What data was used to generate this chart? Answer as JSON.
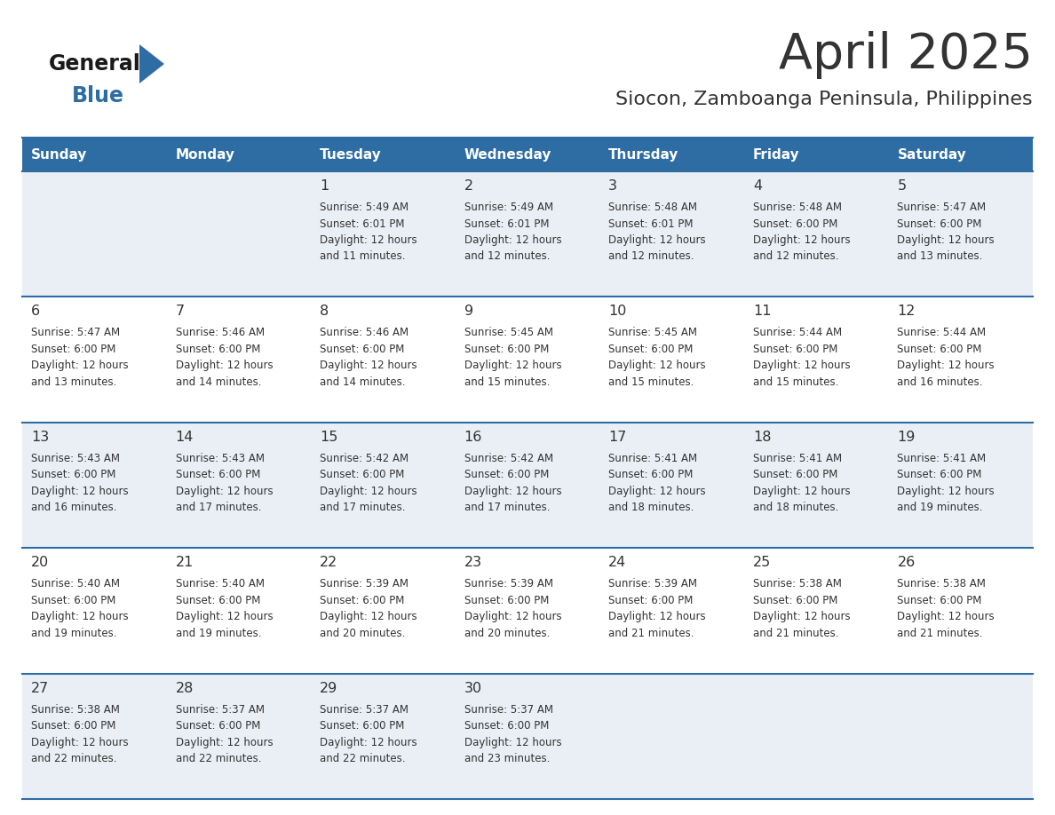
{
  "title": "April 2025",
  "subtitle": "Siocon, Zamboanga Peninsula, Philippines",
  "header_bg_color": "#2E6DA4",
  "header_text_color": "#FFFFFF",
  "row_bg_color_odd": "#EAEFF5",
  "row_bg_color_even": "#FFFFFF",
  "cell_border_color": "#2E6DA4",
  "text_color": "#333333",
  "day_headers": [
    "Sunday",
    "Monday",
    "Tuesday",
    "Wednesday",
    "Thursday",
    "Friday",
    "Saturday"
  ],
  "logo_general_color": "#1a1a1a",
  "logo_blue_color": "#2E6DA4",
  "calendar_data": [
    [
      {
        "day": "",
        "sunrise": "",
        "sunset": "",
        "daylight_hours": 0,
        "daylight_minutes": 0
      },
      {
        "day": "",
        "sunrise": "",
        "sunset": "",
        "daylight_hours": 0,
        "daylight_minutes": 0
      },
      {
        "day": "1",
        "sunrise": "5:49 AM",
        "sunset": "6:01 PM",
        "daylight_hours": 12,
        "daylight_minutes": 11
      },
      {
        "day": "2",
        "sunrise": "5:49 AM",
        "sunset": "6:01 PM",
        "daylight_hours": 12,
        "daylight_minutes": 12
      },
      {
        "day": "3",
        "sunrise": "5:48 AM",
        "sunset": "6:01 PM",
        "daylight_hours": 12,
        "daylight_minutes": 12
      },
      {
        "day": "4",
        "sunrise": "5:48 AM",
        "sunset": "6:00 PM",
        "daylight_hours": 12,
        "daylight_minutes": 12
      },
      {
        "day": "5",
        "sunrise": "5:47 AM",
        "sunset": "6:00 PM",
        "daylight_hours": 12,
        "daylight_minutes": 13
      }
    ],
    [
      {
        "day": "6",
        "sunrise": "5:47 AM",
        "sunset": "6:00 PM",
        "daylight_hours": 12,
        "daylight_minutes": 13
      },
      {
        "day": "7",
        "sunrise": "5:46 AM",
        "sunset": "6:00 PM",
        "daylight_hours": 12,
        "daylight_minutes": 14
      },
      {
        "day": "8",
        "sunrise": "5:46 AM",
        "sunset": "6:00 PM",
        "daylight_hours": 12,
        "daylight_minutes": 14
      },
      {
        "day": "9",
        "sunrise": "5:45 AM",
        "sunset": "6:00 PM",
        "daylight_hours": 12,
        "daylight_minutes": 15
      },
      {
        "day": "10",
        "sunrise": "5:45 AM",
        "sunset": "6:00 PM",
        "daylight_hours": 12,
        "daylight_minutes": 15
      },
      {
        "day": "11",
        "sunrise": "5:44 AM",
        "sunset": "6:00 PM",
        "daylight_hours": 12,
        "daylight_minutes": 15
      },
      {
        "day": "12",
        "sunrise": "5:44 AM",
        "sunset": "6:00 PM",
        "daylight_hours": 12,
        "daylight_minutes": 16
      }
    ],
    [
      {
        "day": "13",
        "sunrise": "5:43 AM",
        "sunset": "6:00 PM",
        "daylight_hours": 12,
        "daylight_minutes": 16
      },
      {
        "day": "14",
        "sunrise": "5:43 AM",
        "sunset": "6:00 PM",
        "daylight_hours": 12,
        "daylight_minutes": 17
      },
      {
        "day": "15",
        "sunrise": "5:42 AM",
        "sunset": "6:00 PM",
        "daylight_hours": 12,
        "daylight_minutes": 17
      },
      {
        "day": "16",
        "sunrise": "5:42 AM",
        "sunset": "6:00 PM",
        "daylight_hours": 12,
        "daylight_minutes": 17
      },
      {
        "day": "17",
        "sunrise": "5:41 AM",
        "sunset": "6:00 PM",
        "daylight_hours": 12,
        "daylight_minutes": 18
      },
      {
        "day": "18",
        "sunrise": "5:41 AM",
        "sunset": "6:00 PM",
        "daylight_hours": 12,
        "daylight_minutes": 18
      },
      {
        "day": "19",
        "sunrise": "5:41 AM",
        "sunset": "6:00 PM",
        "daylight_hours": 12,
        "daylight_minutes": 19
      }
    ],
    [
      {
        "day": "20",
        "sunrise": "5:40 AM",
        "sunset": "6:00 PM",
        "daylight_hours": 12,
        "daylight_minutes": 19
      },
      {
        "day": "21",
        "sunrise": "5:40 AM",
        "sunset": "6:00 PM",
        "daylight_hours": 12,
        "daylight_minutes": 19
      },
      {
        "day": "22",
        "sunrise": "5:39 AM",
        "sunset": "6:00 PM",
        "daylight_hours": 12,
        "daylight_minutes": 20
      },
      {
        "day": "23",
        "sunrise": "5:39 AM",
        "sunset": "6:00 PM",
        "daylight_hours": 12,
        "daylight_minutes": 20
      },
      {
        "day": "24",
        "sunrise": "5:39 AM",
        "sunset": "6:00 PM",
        "daylight_hours": 12,
        "daylight_minutes": 21
      },
      {
        "day": "25",
        "sunrise": "5:38 AM",
        "sunset": "6:00 PM",
        "daylight_hours": 12,
        "daylight_minutes": 21
      },
      {
        "day": "26",
        "sunrise": "5:38 AM",
        "sunset": "6:00 PM",
        "daylight_hours": 12,
        "daylight_minutes": 21
      }
    ],
    [
      {
        "day": "27",
        "sunrise": "5:38 AM",
        "sunset": "6:00 PM",
        "daylight_hours": 12,
        "daylight_minutes": 22
      },
      {
        "day": "28",
        "sunrise": "5:37 AM",
        "sunset": "6:00 PM",
        "daylight_hours": 12,
        "daylight_minutes": 22
      },
      {
        "day": "29",
        "sunrise": "5:37 AM",
        "sunset": "6:00 PM",
        "daylight_hours": 12,
        "daylight_minutes": 22
      },
      {
        "day": "30",
        "sunrise": "5:37 AM",
        "sunset": "6:00 PM",
        "daylight_hours": 12,
        "daylight_minutes": 23
      },
      {
        "day": "",
        "sunrise": "",
        "sunset": "",
        "daylight_hours": 0,
        "daylight_minutes": 0
      },
      {
        "day": "",
        "sunrise": "",
        "sunset": "",
        "daylight_hours": 0,
        "daylight_minutes": 0
      },
      {
        "day": "",
        "sunrise": "",
        "sunset": "",
        "daylight_hours": 0,
        "daylight_minutes": 0
      }
    ]
  ],
  "fig_width": 11.88,
  "fig_height": 9.18,
  "dpi": 100
}
